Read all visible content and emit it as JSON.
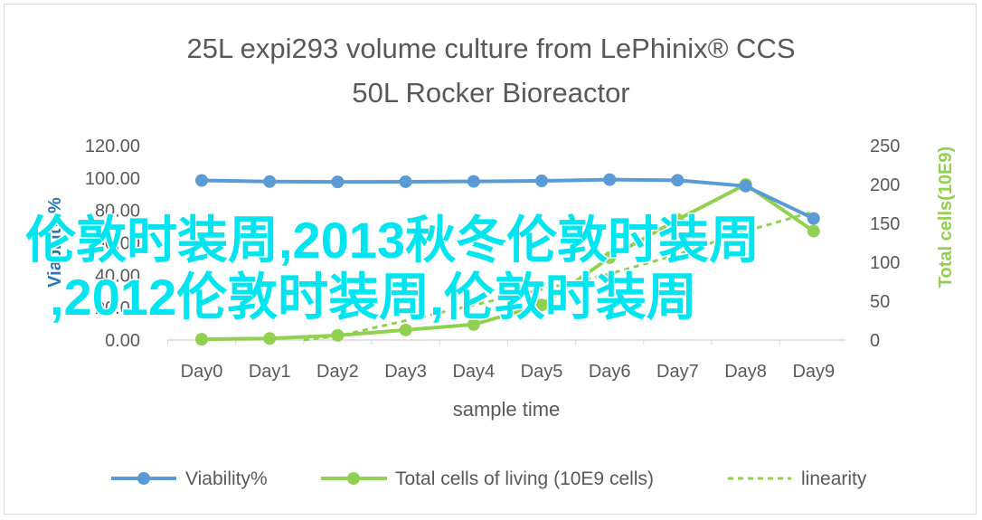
{
  "chart_data": {
    "type": "line",
    "title_line1": "25L  expi293 volume culture  from LePhinix® CCS",
    "title_line2": "50L Rocker Bioreactor",
    "xlabel": "sample  time",
    "ylabel_left": "Viability %",
    "ylabel_right": "Total cells(10E9)",
    "categories": [
      "Day0",
      "Day1",
      "Day2",
      "Day3",
      "Day4",
      "Day5",
      "Day6",
      "Day7",
      "Day8",
      "Day9"
    ],
    "y_left_ticks": [
      "0.00",
      "20.00",
      "40.00",
      "60.00",
      "80.00",
      "100.00",
      "120.00"
    ],
    "y_left_range": [
      0,
      120
    ],
    "y_right_ticks": [
      "0",
      "50",
      "100",
      "150",
      "200",
      "250"
    ],
    "y_right_range": [
      0,
      250
    ],
    "series": [
      {
        "name": "Viability%",
        "axis": "left",
        "color": "#5b9bd5",
        "values": [
          98.5,
          97.8,
          97.6,
          97.7,
          97.9,
          98.2,
          99.0,
          98.6,
          95.0,
          75.0
        ]
      },
      {
        "name": "Total cells of living (10E9 cells)",
        "axis": "right",
        "color": "#92d050",
        "values": [
          1,
          2,
          6,
          13,
          20,
          45,
          106,
          155,
          200,
          140
        ]
      },
      {
        "name": "linearity",
        "axis": "right",
        "color": "#92d050",
        "dashed": true,
        "values": [
          -15,
          -5,
          5,
          25,
          45,
          65,
          85,
          110,
          140,
          165
        ]
      }
    ],
    "grid": false,
    "legend_position": "bottom"
  },
  "overlay_text": {
    "line1": "伦敦时装周,2013秋冬伦敦时装周",
    "line2": ",2012伦敦时装周,伦敦时装周"
  }
}
